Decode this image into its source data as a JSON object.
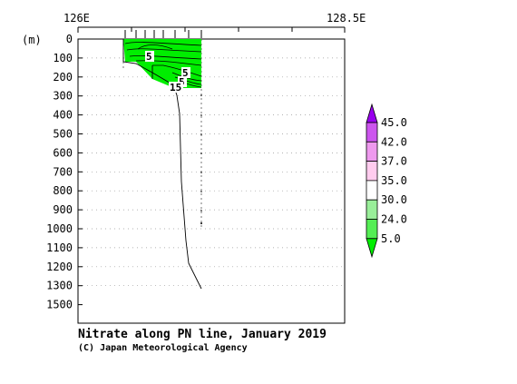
{
  "chart_data": {
    "type": "section-contour",
    "title": "Nitrate along PN line, January 2019",
    "credit": "(C) Japan Meteorological Agency",
    "yunit": "(m)",
    "x_ticks": [
      "126E",
      "128.5E"
    ],
    "y_ticks": [
      "0",
      "100",
      "200",
      "300",
      "400",
      "500",
      "600",
      "700",
      "800",
      "900",
      "1000",
      "1100",
      "1200",
      "1300",
      "1500"
    ],
    "ylim": [
      0,
      1500
    ],
    "colors": {
      "fill_low": "#00ee00",
      "bottom_line": "#000000",
      "grid": "#999999"
    },
    "contour_labels": [
      "5",
      "5",
      "5",
      "15"
    ],
    "legend": {
      "levels": [
        "45.0",
        "42.0",
        "37.0",
        "35.0",
        "30.0",
        "24.0",
        "5.0"
      ],
      "colors": [
        "#9900ee",
        "#cc55ee",
        "#ee99ee",
        "#ffccee",
        "#ffffff",
        "#99ee99",
        "#55ee55",
        "#00ee00"
      ]
    }
  }
}
